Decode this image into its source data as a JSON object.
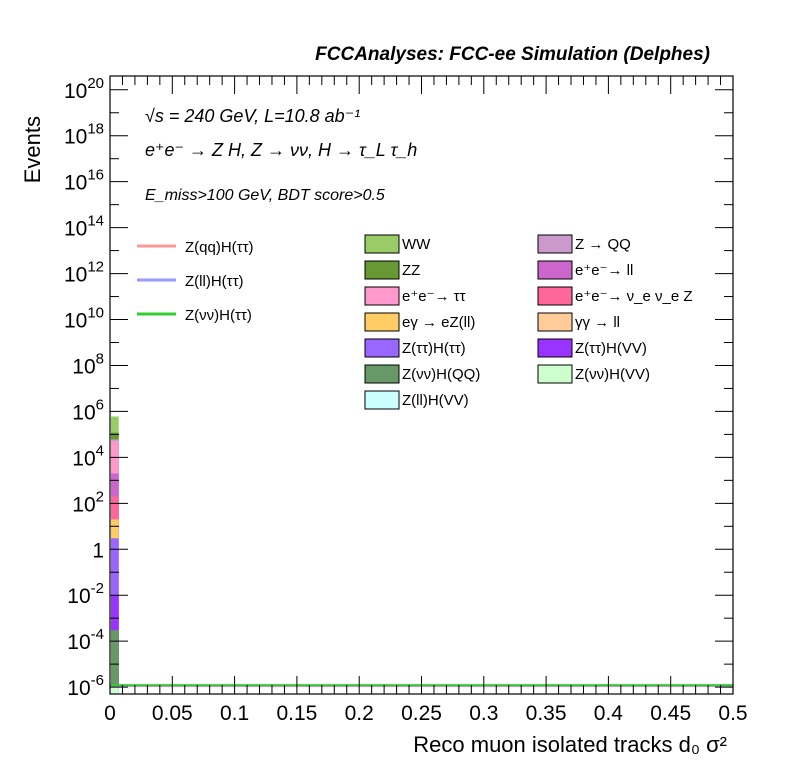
{
  "header": {
    "title": "FCCAnalyses: FCC-ee Simulation (Delphes)"
  },
  "info": {
    "line1": "√s = 240 GeV, L=10.8 ab⁻¹",
    "line2": "e⁺e⁻ → Z H, Z → νν, H → τ_L τ_h",
    "line3": "E_miss>100 GeV, BDT score>0.5"
  },
  "chart_data": {
    "type": "bar",
    "stacked": true,
    "log_y": true,
    "title": "",
    "xlabel": "Reco muon isolated tracks d₀ σ²",
    "ylabel": "Events",
    "xlim": [
      0,
      0.5
    ],
    "ylim_log10": [
      -6.3,
      20.6
    ],
    "x_ticks": [
      "0",
      "0.05",
      "0.1",
      "0.15",
      "0.2",
      "0.25",
      "0.3",
      "0.35",
      "0.4",
      "0.45",
      "0.5"
    ],
    "y_ticks": [
      {
        "exp": 20,
        "label": "10^20"
      },
      {
        "exp": 18,
        "label": "10^18"
      },
      {
        "exp": 16,
        "label": "10^16"
      },
      {
        "exp": 14,
        "label": "10^14"
      },
      {
        "exp": 12,
        "label": "10^12"
      },
      {
        "exp": 10,
        "label": "10^10"
      },
      {
        "exp": 8,
        "label": "10^8"
      },
      {
        "exp": 6,
        "label": "10^6"
      },
      {
        "exp": 4,
        "label": "10^4"
      },
      {
        "exp": 2,
        "label": "10^2"
      },
      {
        "exp": 0,
        "label": "1"
      },
      {
        "exp": -2,
        "label": "10^-2"
      },
      {
        "exp": -4,
        "label": "10^-4"
      },
      {
        "exp": -6,
        "label": "10^-6"
      }
    ],
    "bin": [
      0,
      0.007
    ],
    "stack": [
      {
        "name": "Z(νν)H(VV)",
        "color": "#ccffcc",
        "top": 1e-06
      },
      {
        "name": "Z(ll)H(VV)",
        "color": "#ccffff",
        "top": 1e-06
      },
      {
        "name": "Z(νν)H(QQ)",
        "color": "#669966",
        "top": 0.0003
      },
      {
        "name": "Z(ττ)H(VV)",
        "color": "#9933ff",
        "top": 0.01
      },
      {
        "name": "Z(ττ)H(ττ)",
        "color": "#9966ff",
        "top": 3
      },
      {
        "name": "γγ → ll",
        "color": "#ffcc99",
        "top": 3
      },
      {
        "name": "eγ → eZ(ll)",
        "color": "#ffcc66",
        "top": 20
      },
      {
        "name": "e⁺e⁻→ ν_e ν_e Z",
        "color": "#ff6699",
        "top": 200
      },
      {
        "name": "e⁺e⁻→ ll",
        "color": "#cc66cc",
        "top": 2000
      },
      {
        "name": "e⁺e⁻→ ττ",
        "color": "#ff99cc",
        "top": 50000
      },
      {
        "name": "Z → QQ",
        "color": "#cc99cc",
        "top": 60000
      },
      {
        "name": "ZZ",
        "color": "#669933",
        "top": 120000
      },
      {
        "name": "WW",
        "color": "#99cc66",
        "top": 600000
      }
    ],
    "signals": [
      {
        "name": "Z(qq)H(ττ)",
        "color": "#ff9999",
        "value": 1e-06
      },
      {
        "name": "Z(ll)H(ττ)",
        "color": "#9999ff",
        "value": 1e-06
      },
      {
        "name": "Z(νν)H(ττ)",
        "color": "#33cc33",
        "value": 1e-06
      }
    ],
    "legend_col_a": [
      {
        "label": "WW",
        "color": "#99cc66"
      },
      {
        "label": "ZZ",
        "color": "#669933"
      },
      {
        "label": "e⁺e⁻→ ττ",
        "color": "#ff99cc"
      },
      {
        "label": "eγ → eZ(ll)",
        "color": "#ffcc66"
      },
      {
        "label": "Z(ττ)H(ττ)",
        "color": "#9966ff"
      },
      {
        "label": "Z(νν)H(QQ)",
        "color": "#669966"
      },
      {
        "label": "Z(ll)H(VV)",
        "color": "#ccffff"
      }
    ],
    "legend_col_b": [
      {
        "label": "Z → QQ",
        "color": "#cc99cc"
      },
      {
        "label": "e⁺e⁻→ ll",
        "color": "#cc66cc"
      },
      {
        "label": "e⁺e⁻→ ν_e ν_e Z",
        "color": "#ff6699"
      },
      {
        "label": "γγ → ll",
        "color": "#ffcc99"
      },
      {
        "label": "Z(ττ)H(VV)",
        "color": "#9933ff"
      },
      {
        "label": "Z(νν)H(VV)",
        "color": "#ccffcc"
      }
    ],
    "legend_lines": [
      {
        "label": "Z(qq)H(ττ)",
        "color": "#ff9999"
      },
      {
        "label": "Z(ll)H(ττ)",
        "color": "#9999ff"
      },
      {
        "label": "Z(νν)H(ττ)",
        "color": "#33cc33"
      }
    ]
  }
}
